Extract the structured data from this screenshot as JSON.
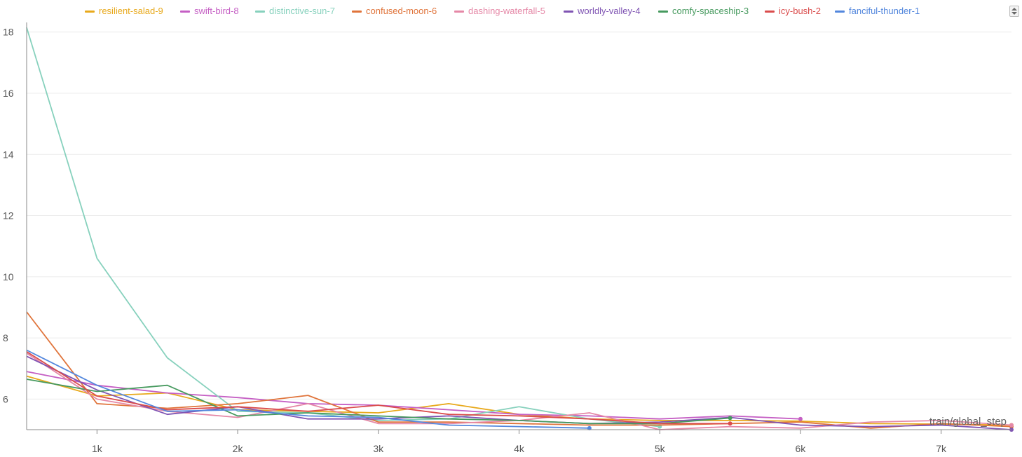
{
  "chart_data": {
    "type": "line",
    "xlabel": "train/global_step",
    "ylabel": "",
    "xlim": [
      500,
      7500
    ],
    "ylim": [
      5,
      18.2
    ],
    "grid": true,
    "legend_position": "top",
    "x_ticks": [
      1000,
      2000,
      3000,
      4000,
      5000,
      6000,
      7000
    ],
    "x_tick_labels": [
      "1k",
      "2k",
      "3k",
      "4k",
      "5k",
      "6k",
      "7k"
    ],
    "y_ticks": [
      6,
      8,
      10,
      12,
      14,
      16,
      18
    ],
    "y_tick_labels": [
      "6",
      "8",
      "10",
      "12",
      "14",
      "16",
      "18"
    ],
    "series": [
      {
        "name": "resilient-salad-9",
        "color": "#e8a91c",
        "x": [
          500,
          1000,
          1500,
          2000,
          2500,
          3000,
          3500,
          4000,
          4500,
          5000,
          5500,
          6000,
          6500,
          7000,
          7500
        ],
        "y": [
          6.75,
          6.1,
          6.2,
          5.65,
          5.6,
          5.55,
          5.85,
          5.5,
          5.35,
          5.3,
          5.3,
          5.28,
          5.2,
          5.18,
          5.15
        ]
      },
      {
        "name": "swift-bird-8",
        "color": "#c55fc4",
        "x": [
          500,
          1000,
          1500,
          2000,
          2500,
          3000,
          3500,
          4000,
          4500,
          5000,
          5500,
          6000
        ],
        "y": [
          6.9,
          6.45,
          6.2,
          6.05,
          5.85,
          5.8,
          5.65,
          5.5,
          5.45,
          5.35,
          5.45,
          5.35
        ]
      },
      {
        "name": "distinctive-sun-7",
        "color": "#87d1bd",
        "x": [
          500,
          1000,
          1500,
          2000,
          2500,
          3000,
          3500,
          4000,
          4500,
          5000
        ],
        "y": [
          18.15,
          10.6,
          7.35,
          5.6,
          5.55,
          5.3,
          5.35,
          5.75,
          5.35,
          5.1
        ]
      },
      {
        "name": "confused-moon-6",
        "color": "#e0743b",
        "x": [
          500,
          1000,
          1500,
          2000,
          2500,
          3000,
          3500,
          4000,
          4500,
          5000,
          5500,
          6000,
          6500,
          7000,
          7500
        ],
        "y": [
          8.85,
          5.85,
          5.7,
          5.85,
          6.12,
          5.25,
          5.25,
          5.2,
          5.15,
          5.15,
          5.2,
          5.25,
          5.05,
          5.2,
          5.1
        ]
      },
      {
        "name": "dashing-waterfall-5",
        "color": "#e588a7",
        "x": [
          500,
          1000,
          1500,
          2000,
          2500,
          3000,
          3500,
          4000,
          4500,
          5000,
          5500,
          6000,
          6500,
          7000,
          7500
        ],
        "y": [
          7.5,
          6.0,
          5.6,
          5.4,
          5.85,
          5.2,
          5.2,
          5.3,
          5.55,
          5.0,
          5.1,
          5.05,
          5.25,
          5.3,
          5.15
        ]
      },
      {
        "name": "worldly-valley-4",
        "color": "#7f54b3",
        "x": [
          500,
          1000,
          1500,
          2000,
          2500,
          3000,
          3500,
          4000,
          4500,
          5000,
          5500,
          6000,
          6500,
          7000,
          7500
        ],
        "y": [
          7.4,
          6.3,
          5.5,
          5.75,
          5.35,
          5.35,
          5.45,
          5.3,
          5.2,
          5.25,
          5.4,
          5.15,
          5.1,
          5.15,
          5.0
        ]
      },
      {
        "name": "comfy-spaceship-3",
        "color": "#479a5f",
        "x": [
          500,
          1000,
          1500,
          2000,
          2500,
          3000,
          3500,
          4000,
          4500,
          5000,
          5500
        ],
        "y": [
          6.65,
          6.25,
          6.45,
          5.45,
          5.55,
          5.45,
          5.35,
          5.3,
          5.2,
          5.2,
          5.38
        ]
      },
      {
        "name": "icy-bush-2",
        "color": "#da4c4c",
        "x": [
          500,
          1000,
          1500,
          2000,
          2500,
          3000,
          3500,
          4000,
          4500,
          5000,
          5500
        ],
        "y": [
          7.55,
          6.1,
          5.65,
          5.75,
          5.6,
          5.8,
          5.5,
          5.45,
          5.35,
          5.2,
          5.2
        ]
      },
      {
        "name": "fanciful-thunder-1",
        "color": "#5387dd",
        "x": [
          500,
          1000,
          1500,
          2000,
          2500,
          3000,
          3500,
          4000,
          4500
        ],
        "y": [
          7.6,
          6.45,
          5.6,
          5.65,
          5.45,
          5.4,
          5.15,
          5.1,
          5.05
        ]
      }
    ]
  }
}
